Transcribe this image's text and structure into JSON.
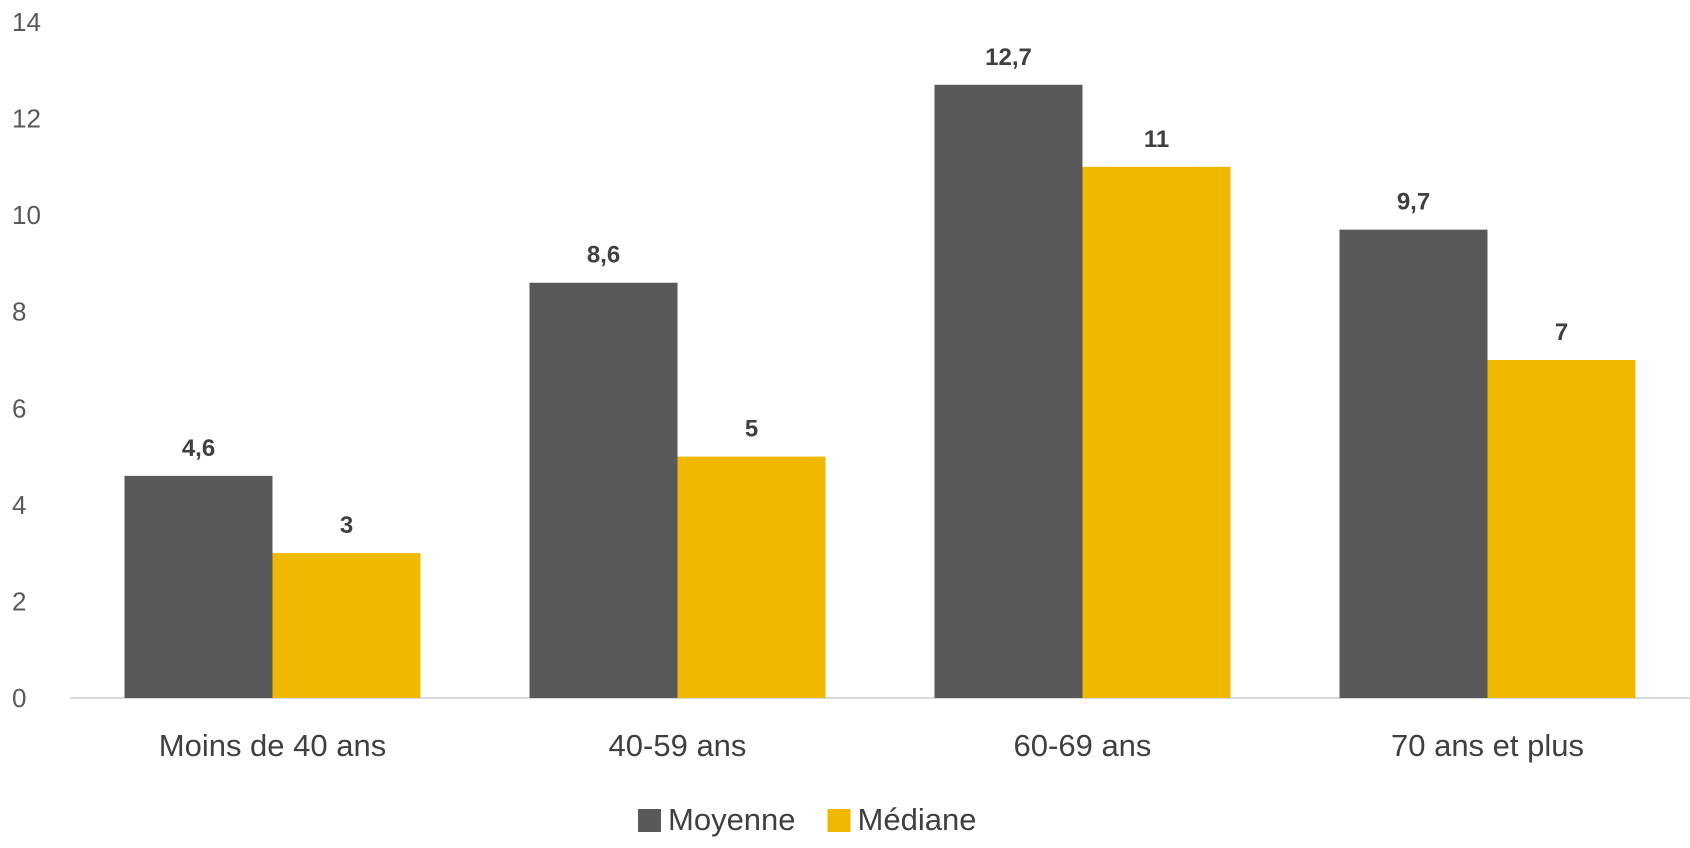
{
  "chart_data": {
    "type": "bar",
    "categories": [
      "Moins de 40 ans",
      "40-59 ans",
      "60-69 ans",
      "70 ans et plus"
    ],
    "series": [
      {
        "name": "Moyenne",
        "values": [
          4.6,
          8.6,
          12.7,
          9.7
        ],
        "labels": [
          "4,6",
          "8,6",
          "12,7",
          "9,7"
        ],
        "color": "#595959"
      },
      {
        "name": "Médiane",
        "values": [
          3,
          5,
          11,
          7
        ],
        "labels": [
          "3",
          "5",
          "11",
          "7"
        ],
        "color": "#F0B800"
      }
    ],
    "yticks": [
      "0",
      "2",
      "4",
      "6",
      "8",
      "10",
      "12",
      "14"
    ],
    "ylim": [
      0,
      14
    ],
    "grid": false,
    "legend_position": "bottom"
  }
}
